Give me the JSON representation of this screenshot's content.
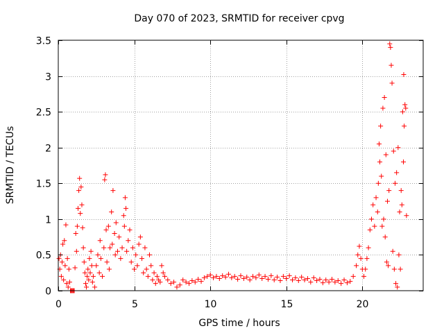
{
  "chart_data": {
    "type": "scatter",
    "title": "Day 070 of 2023, SRMTID for receiver cpvg",
    "xlabel": "GPS time / hours",
    "ylabel": "SRMTID / TECUs",
    "xlim": [
      0,
      24
    ],
    "ylim": [
      0,
      3.5
    ],
    "xticks": [
      0,
      5,
      10,
      15,
      20
    ],
    "xtick_labels": [
      "0",
      "5",
      "10",
      "15",
      "20"
    ],
    "yticks": [
      0,
      0.5,
      1,
      1.5,
      2,
      2.5,
      3,
      3.5
    ],
    "ytick_labels": [
      "0",
      "0.5",
      "1",
      "1.5",
      "2",
      "2.5",
      "3",
      "3.5"
    ],
    "grid": true,
    "marker": "+",
    "color": "#ff0000",
    "series": [
      {
        "name": "SRMTID",
        "points": [
          [
            0.05,
            0.45
          ],
          [
            0.1,
            0.3
          ],
          [
            0.15,
            0.5
          ],
          [
            0.2,
            0.2
          ],
          [
            0.25,
            0.4
          ],
          [
            0.3,
            0.65
          ],
          [
            0.35,
            0.15
          ],
          [
            0.4,
            0.7
          ],
          [
            0.45,
            0.35
          ],
          [
            0.5,
            0.92
          ],
          [
            0.55,
            0.1
          ],
          [
            0.6,
            0.45
          ],
          [
            0.65,
            0.05
          ],
          [
            0.7,
            0.3
          ],
          [
            0.75,
            0.12
          ],
          [
            0.8,
            0.0
          ],
          [
            0.85,
            0.0
          ],
          [
            0.9,
            0.0
          ],
          [
            0.95,
            0.0
          ],
          [
            1.0,
            0.0
          ],
          [
            1.05,
            0.0
          ],
          [
            1.1,
            0.32
          ],
          [
            1.15,
            0.8
          ],
          [
            1.2,
            0.55
          ],
          [
            1.25,
            0.9
          ],
          [
            1.3,
            1.15
          ],
          [
            1.35,
            1.4
          ],
          [
            1.4,
            1.57
          ],
          [
            1.45,
            1.08
          ],
          [
            1.5,
            1.45
          ],
          [
            1.55,
            1.2
          ],
          [
            1.6,
            0.88
          ],
          [
            1.65,
            0.6
          ],
          [
            1.7,
            0.4
          ],
          [
            1.75,
            0.25
          ],
          [
            1.8,
            0.1
          ],
          [
            1.85,
            0.05
          ],
          [
            1.9,
            0.2
          ],
          [
            1.95,
            0.3
          ],
          [
            2.0,
            0.15
          ],
          [
            2.05,
            0.45
          ],
          [
            2.1,
            0.25
          ],
          [
            2.15,
            0.55
          ],
          [
            2.2,
            0.35
          ],
          [
            2.25,
            0.12
          ],
          [
            2.3,
            0.2
          ],
          [
            2.4,
            0.05
          ],
          [
            2.5,
            0.35
          ],
          [
            2.6,
            0.5
          ],
          [
            2.7,
            0.25
          ],
          [
            2.75,
            0.7
          ],
          [
            2.8,
            0.45
          ],
          [
            2.9,
            0.2
          ],
          [
            3.0,
            0.6
          ],
          [
            3.05,
            1.55
          ],
          [
            3.1,
            1.62
          ],
          [
            3.15,
            0.85
          ],
          [
            3.2,
            0.4
          ],
          [
            3.3,
            0.9
          ],
          [
            3.35,
            0.3
          ],
          [
            3.4,
            0.6
          ],
          [
            3.5,
            1.1
          ],
          [
            3.55,
            0.65
          ],
          [
            3.6,
            1.4
          ],
          [
            3.7,
            0.8
          ],
          [
            3.75,
            0.5
          ],
          [
            3.8,
            0.95
          ],
          [
            3.9,
            0.55
          ],
          [
            4.0,
            0.75
          ],
          [
            4.1,
            0.45
          ],
          [
            4.2,
            0.6
          ],
          [
            4.3,
            1.05
          ],
          [
            4.35,
            0.9
          ],
          [
            4.4,
            1.3
          ],
          [
            4.45,
            1.15
          ],
          [
            4.5,
            0.55
          ],
          [
            4.6,
            0.7
          ],
          [
            4.7,
            0.85
          ],
          [
            4.8,
            0.4
          ],
          [
            4.9,
            0.6
          ],
          [
            5.0,
            0.3
          ],
          [
            5.1,
            0.5
          ],
          [
            5.2,
            0.35
          ],
          [
            5.3,
            0.65
          ],
          [
            5.4,
            0.75
          ],
          [
            5.5,
            0.45
          ],
          [
            5.6,
            0.25
          ],
          [
            5.7,
            0.6
          ],
          [
            5.8,
            0.3
          ],
          [
            5.9,
            0.2
          ],
          [
            6.0,
            0.5
          ],
          [
            6.1,
            0.35
          ],
          [
            6.2,
            0.15
          ],
          [
            6.3,
            0.25
          ],
          [
            6.4,
            0.1
          ],
          [
            6.5,
            0.2
          ],
          [
            6.6,
            0.15
          ],
          [
            6.7,
            0.12
          ],
          [
            6.8,
            0.35
          ],
          [
            6.9,
            0.25
          ],
          [
            7.0,
            0.2
          ],
          [
            7.2,
            0.15
          ],
          [
            7.4,
            0.1
          ],
          [
            7.6,
            0.12
          ],
          [
            7.8,
            0.05
          ],
          [
            8.0,
            0.08
          ],
          [
            8.2,
            0.15
          ],
          [
            8.4,
            0.12
          ],
          [
            8.6,
            0.1
          ],
          [
            8.8,
            0.14
          ],
          [
            9.0,
            0.12
          ],
          [
            9.2,
            0.16
          ],
          [
            9.4,
            0.13
          ],
          [
            9.6,
            0.18
          ],
          [
            9.8,
            0.2
          ],
          [
            10.0,
            0.22
          ],
          [
            10.2,
            0.18
          ],
          [
            10.4,
            0.2
          ],
          [
            10.6,
            0.17
          ],
          [
            10.8,
            0.21
          ],
          [
            11.0,
            0.19
          ],
          [
            11.2,
            0.23
          ],
          [
            11.4,
            0.18
          ],
          [
            11.6,
            0.2
          ],
          [
            11.8,
            0.16
          ],
          [
            12.0,
            0.21
          ],
          [
            12.2,
            0.17
          ],
          [
            12.4,
            0.19
          ],
          [
            12.6,
            0.15
          ],
          [
            12.8,
            0.2
          ],
          [
            13.0,
            0.18
          ],
          [
            13.2,
            0.22
          ],
          [
            13.4,
            0.17
          ],
          [
            13.6,
            0.2
          ],
          [
            13.8,
            0.16
          ],
          [
            14.0,
            0.21
          ],
          [
            14.2,
            0.15
          ],
          [
            14.4,
            0.19
          ],
          [
            14.6,
            0.14
          ],
          [
            14.8,
            0.2
          ],
          [
            15.0,
            0.17
          ],
          [
            15.2,
            0.21
          ],
          [
            15.4,
            0.15
          ],
          [
            15.6,
            0.18
          ],
          [
            15.8,
            0.14
          ],
          [
            16.0,
            0.19
          ],
          [
            16.2,
            0.15
          ],
          [
            16.4,
            0.17
          ],
          [
            16.6,
            0.12
          ],
          [
            16.8,
            0.18
          ],
          [
            17.0,
            0.14
          ],
          [
            17.2,
            0.16
          ],
          [
            17.4,
            0.11
          ],
          [
            17.6,
            0.15
          ],
          [
            17.8,
            0.12
          ],
          [
            18.0,
            0.16
          ],
          [
            18.2,
            0.12
          ],
          [
            18.4,
            0.14
          ],
          [
            18.6,
            0.1
          ],
          [
            18.8,
            0.15
          ],
          [
            19.0,
            0.11
          ],
          [
            19.2,
            0.13
          ],
          [
            19.4,
            0.2
          ],
          [
            19.6,
            0.35
          ],
          [
            19.7,
            0.5
          ],
          [
            19.8,
            0.62
          ],
          [
            19.9,
            0.45
          ],
          [
            20.0,
            0.3
          ],
          [
            20.1,
            0.2
          ],
          [
            20.2,
            0.3
          ],
          [
            20.3,
            0.45
          ],
          [
            20.4,
            0.6
          ],
          [
            20.5,
            0.85
          ],
          [
            20.6,
            1.0
          ],
          [
            20.7,
            1.2
          ],
          [
            20.8,
            0.9
          ],
          [
            20.9,
            1.3
          ],
          [
            21.0,
            1.1
          ],
          [
            21.05,
            1.5
          ],
          [
            21.1,
            2.05
          ],
          [
            21.15,
            1.8
          ],
          [
            21.2,
            2.3
          ],
          [
            21.25,
            1.6
          ],
          [
            21.3,
            0.9
          ],
          [
            21.35,
            2.55
          ],
          [
            21.4,
            1.0
          ],
          [
            21.45,
            2.7
          ],
          [
            21.5,
            0.75
          ],
          [
            21.55,
            1.9
          ],
          [
            21.6,
            0.4
          ],
          [
            21.65,
            1.25
          ],
          [
            21.7,
            0.35
          ],
          [
            21.75,
            1.4
          ],
          [
            21.8,
            3.45
          ],
          [
            21.85,
            3.4
          ],
          [
            21.9,
            3.15
          ],
          [
            21.95,
            2.9
          ],
          [
            22.0,
            0.55
          ],
          [
            22.05,
            1.95
          ],
          [
            22.1,
            0.3
          ],
          [
            22.15,
            1.5
          ],
          [
            22.2,
            0.1
          ],
          [
            22.25,
            1.65
          ],
          [
            22.3,
            0.05
          ],
          [
            22.35,
            2.0
          ],
          [
            22.4,
            0.5
          ],
          [
            22.45,
            1.1
          ],
          [
            22.5,
            0.3
          ],
          [
            22.55,
            1.4
          ],
          [
            22.6,
            1.2
          ],
          [
            22.65,
            2.5
          ],
          [
            22.7,
            1.8
          ],
          [
            22.72,
            3.02
          ],
          [
            22.75,
            2.3
          ],
          [
            22.8,
            2.6
          ],
          [
            22.85,
            2.55
          ],
          [
            22.9,
            1.05
          ]
        ]
      }
    ]
  }
}
